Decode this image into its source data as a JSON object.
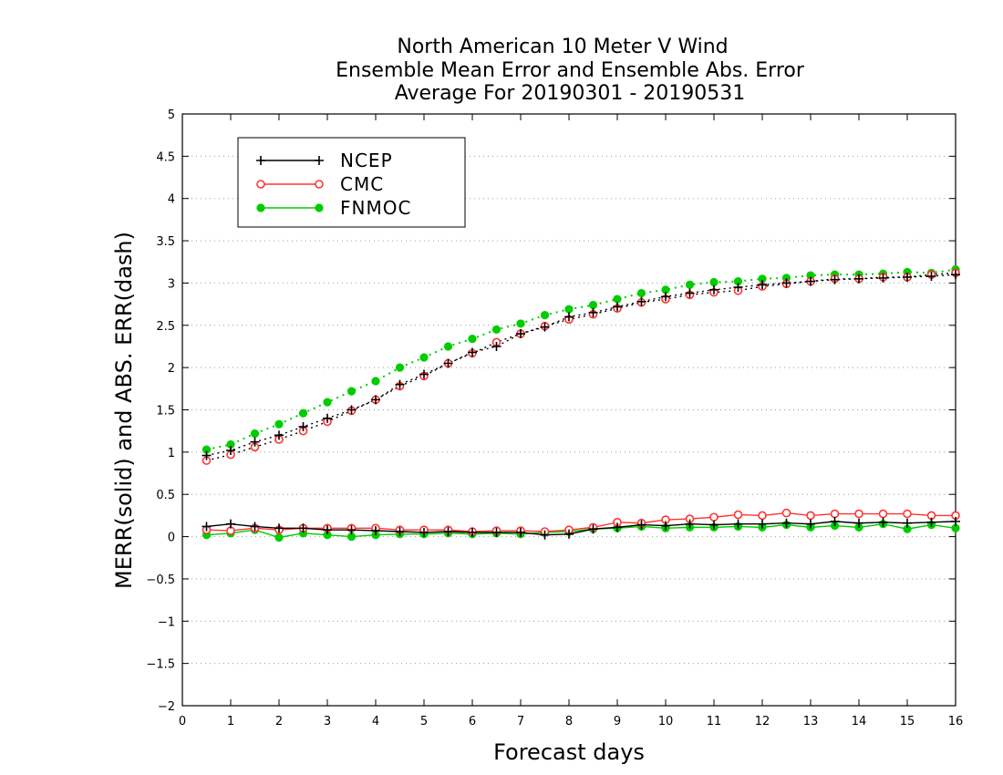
{
  "chart_data": {
    "type": "line",
    "title": [
      "North American 10 Meter V Wind",
      "Ensemble Mean Error and Ensemble Abs. Error",
      "Average For 20190301 - 20190531"
    ],
    "xlabel": "Forecast days",
    "ylabel": "MERR(solid) and ABS. ERR(dash)",
    "xlim": [
      0,
      16
    ],
    "ylim": [
      -2,
      5
    ],
    "xticks": [
      "0",
      "1",
      "2",
      "3",
      "4",
      "5",
      "6",
      "7",
      "8",
      "9",
      "10",
      "11",
      "12",
      "13",
      "14",
      "15",
      "16"
    ],
    "yticks": [
      "−2",
      "−1.5",
      "−1",
      "−0.5",
      "0",
      "0.5",
      "1",
      "1.5",
      "2",
      "2.5",
      "3",
      "3.5",
      "4",
      "4.5",
      "5"
    ],
    "grid": "horizontal dotted",
    "legend_position": "top-left",
    "x": [
      0.5,
      1,
      1.5,
      2,
      2.5,
      3,
      3.5,
      4,
      4.5,
      5,
      5.5,
      6,
      6.5,
      7,
      7.5,
      8,
      8.5,
      9,
      9.5,
      10,
      10.5,
      11,
      11.5,
      12,
      12.5,
      13,
      13.5,
      14,
      14.5,
      15,
      15.5,
      16
    ],
    "series": [
      {
        "name": "NCEP",
        "color": "#000000",
        "marker": "plus",
        "abs_error": [
          0.96,
          1.02,
          1.12,
          1.2,
          1.3,
          1.4,
          1.5,
          1.62,
          1.8,
          1.92,
          2.05,
          2.18,
          2.25,
          2.4,
          2.48,
          2.6,
          2.65,
          2.72,
          2.78,
          2.84,
          2.88,
          2.92,
          2.95,
          2.98,
          3.0,
          3.02,
          3.04,
          3.05,
          3.06,
          3.07,
          3.08,
          3.1
        ],
        "mean_error": [
          0.12,
          0.15,
          0.12,
          0.1,
          0.1,
          0.08,
          0.08,
          0.07,
          0.06,
          0.05,
          0.06,
          0.05,
          0.05,
          0.05,
          0.02,
          0.03,
          0.09,
          0.11,
          0.14,
          0.13,
          0.15,
          0.14,
          0.15,
          0.15,
          0.16,
          0.15,
          0.18,
          0.16,
          0.17,
          0.16,
          0.17,
          0.18
        ]
      },
      {
        "name": "CMC",
        "color": "#ff3333",
        "marker": "open-circle",
        "abs_error": [
          0.9,
          0.97,
          1.06,
          1.15,
          1.25,
          1.36,
          1.49,
          1.62,
          1.78,
          1.9,
          2.05,
          2.17,
          2.3,
          2.4,
          2.49,
          2.57,
          2.63,
          2.7,
          2.77,
          2.81,
          2.86,
          2.89,
          2.91,
          2.96,
          2.99,
          3.02,
          3.05,
          3.05,
          3.07,
          3.07,
          3.1,
          3.12
        ],
        "mean_error": [
          0.08,
          0.07,
          0.1,
          0.08,
          0.1,
          0.1,
          0.1,
          0.1,
          0.08,
          0.08,
          0.08,
          0.06,
          0.07,
          0.07,
          0.06,
          0.08,
          0.11,
          0.17,
          0.16,
          0.2,
          0.21,
          0.23,
          0.26,
          0.25,
          0.28,
          0.25,
          0.27,
          0.27,
          0.27,
          0.27,
          0.25,
          0.25
        ]
      },
      {
        "name": "FNMOC",
        "color": "#00cc00",
        "marker": "filled-circle",
        "abs_error": [
          1.03,
          1.09,
          1.22,
          1.33,
          1.46,
          1.59,
          1.72,
          1.84,
          2.0,
          2.12,
          2.25,
          2.34,
          2.45,
          2.52,
          2.62,
          2.69,
          2.74,
          2.81,
          2.88,
          2.92,
          2.98,
          3.01,
          3.02,
          3.05,
          3.06,
          3.09,
          3.1,
          3.1,
          3.11,
          3.13,
          3.12,
          3.16
        ],
        "mean_error": [
          0.02,
          0.04,
          0.08,
          -0.01,
          0.04,
          0.02,
          0.0,
          0.02,
          0.03,
          0.03,
          0.04,
          0.03,
          0.04,
          0.03,
          0.05,
          0.06,
          0.09,
          0.1,
          0.12,
          0.1,
          0.11,
          0.11,
          0.12,
          0.11,
          0.14,
          0.11,
          0.13,
          0.11,
          0.15,
          0.09,
          0.14,
          0.1
        ]
      }
    ]
  }
}
